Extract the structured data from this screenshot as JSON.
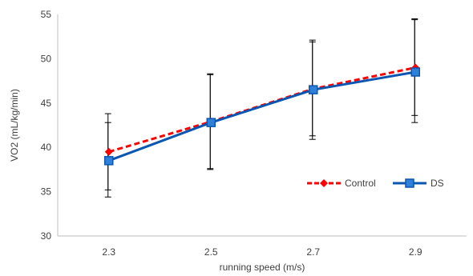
{
  "chart_data": {
    "type": "line",
    "title": "",
    "xlabel": "running speed (m/s)",
    "ylabel": "VO2 (mL/kg/min)",
    "categories": [
      "2.3",
      "2.5",
      "2.7",
      "2.9"
    ],
    "ylim": [
      30,
      55
    ],
    "yticks": [
      "30",
      "35",
      "40",
      "45",
      "50",
      "55"
    ],
    "grid": false,
    "legend_position": "bottom-right",
    "series": [
      {
        "name": "Control",
        "values": [
          39.5,
          42.9,
          46.6,
          49.0
        ],
        "error_upper": [
          43.8,
          48.2,
          51.9,
          54.4
        ],
        "error_lower": [
          35.2,
          37.6,
          41.3,
          43.6
        ],
        "color": "#ff0000",
        "line_style": "dashed",
        "marker": "diamond"
      },
      {
        "name": "DS",
        "values": [
          38.5,
          42.8,
          46.5,
          48.5
        ],
        "error_upper": [
          42.8,
          48.3,
          52.1,
          54.5
        ],
        "error_lower": [
          34.4,
          37.5,
          40.9,
          42.8
        ],
        "color": "#0a56b0",
        "line_style": "solid",
        "marker": "square"
      }
    ]
  }
}
